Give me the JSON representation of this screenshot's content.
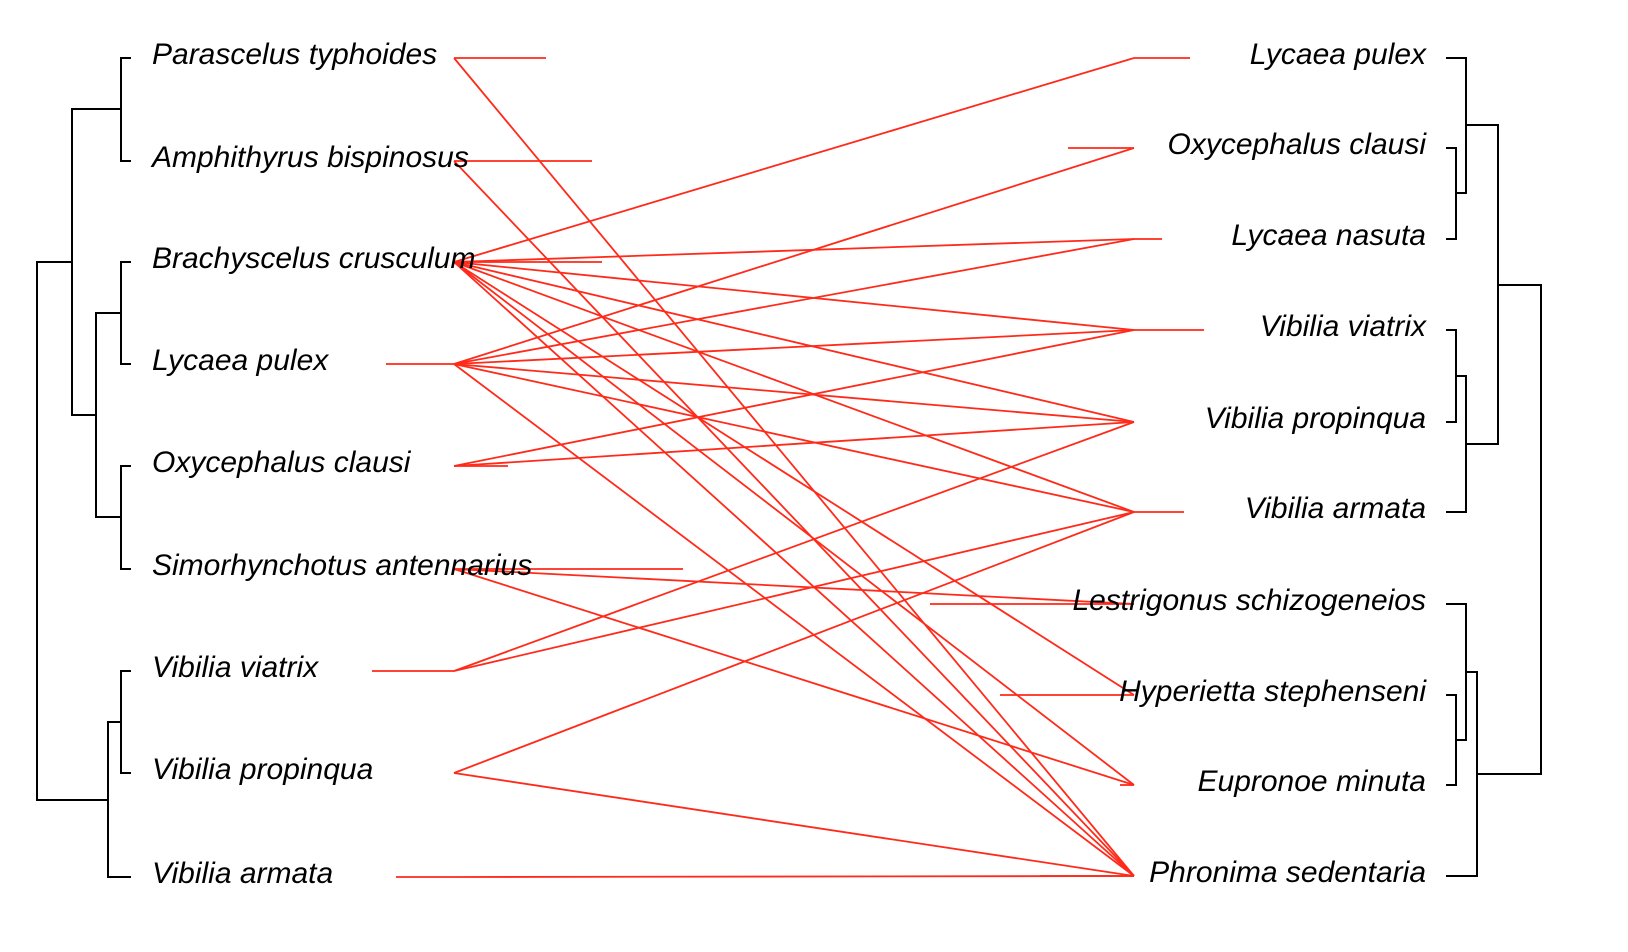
{
  "tanglegram": {
    "left_taxa": [
      "Parascelus typhoides",
      "Amphithyrus bispinosus",
      "Brachyscelus crusculum",
      "Lycaea pulex",
      "Oxycephalus clausi",
      "Simorhynchotus antennarius",
      "Vibilia viatrix",
      "Vibilia propinqua",
      "Vibilia armata"
    ],
    "right_taxa": [
      "Lycaea pulex",
      "Oxycephalus clausi",
      "Lycaea nasuta",
      "Vibilia viatrix",
      "Vibilia propinqua",
      "Vibilia armata",
      "Lestrigonus schizogeneios",
      "Hyperietta stephenseni",
      "Eupronoe minuta",
      "Phronima sedentaria"
    ],
    "associations": [
      {
        "left": "Parascelus typhoides",
        "right": "Phronima sedentaria"
      },
      {
        "left": "Amphithyrus bispinosus",
        "right": "Phronima sedentaria"
      },
      {
        "left": "Brachyscelus crusculum",
        "right": "Lycaea pulex"
      },
      {
        "left": "Brachyscelus crusculum",
        "right": "Lycaea nasuta"
      },
      {
        "left": "Brachyscelus crusculum",
        "right": "Vibilia viatrix"
      },
      {
        "left": "Brachyscelus crusculum",
        "right": "Vibilia propinqua"
      },
      {
        "left": "Brachyscelus crusculum",
        "right": "Vibilia armata"
      },
      {
        "left": "Brachyscelus crusculum",
        "right": "Hyperietta stephenseni"
      },
      {
        "left": "Brachyscelus crusculum",
        "right": "Eupronoe minuta"
      },
      {
        "left": "Brachyscelus crusculum",
        "right": "Phronima sedentaria"
      },
      {
        "left": "Lycaea pulex",
        "right": "Oxycephalus clausi"
      },
      {
        "left": "Lycaea pulex",
        "right": "Lycaea nasuta"
      },
      {
        "left": "Lycaea pulex",
        "right": "Vibilia viatrix"
      },
      {
        "left": "Lycaea pulex",
        "right": "Vibilia propinqua"
      },
      {
        "left": "Lycaea pulex",
        "right": "Vibilia armata"
      },
      {
        "left": "Lycaea pulex",
        "right": "Phronima sedentaria"
      },
      {
        "left": "Oxycephalus clausi",
        "right": "Vibilia viatrix"
      },
      {
        "left": "Oxycephalus clausi",
        "right": "Vibilia propinqua"
      },
      {
        "left": "Simorhynchotus antennarius",
        "right": "Lestrigonus schizogeneios"
      },
      {
        "left": "Simorhynchotus antennarius",
        "right": "Eupronoe minuta"
      },
      {
        "left": "Vibilia viatrix",
        "right": "Vibilia propinqua"
      },
      {
        "left": "Vibilia viatrix",
        "right": "Vibilia armata"
      },
      {
        "left": "Vibilia propinqua",
        "right": "Vibilia armata"
      },
      {
        "left": "Vibilia propinqua",
        "right": "Phronima sedentaria"
      },
      {
        "left": "Vibilia armata",
        "right": "Phronima sedentaria"
      }
    ],
    "colors": {
      "links": "#ff2a1a",
      "tree": "#000000"
    }
  }
}
